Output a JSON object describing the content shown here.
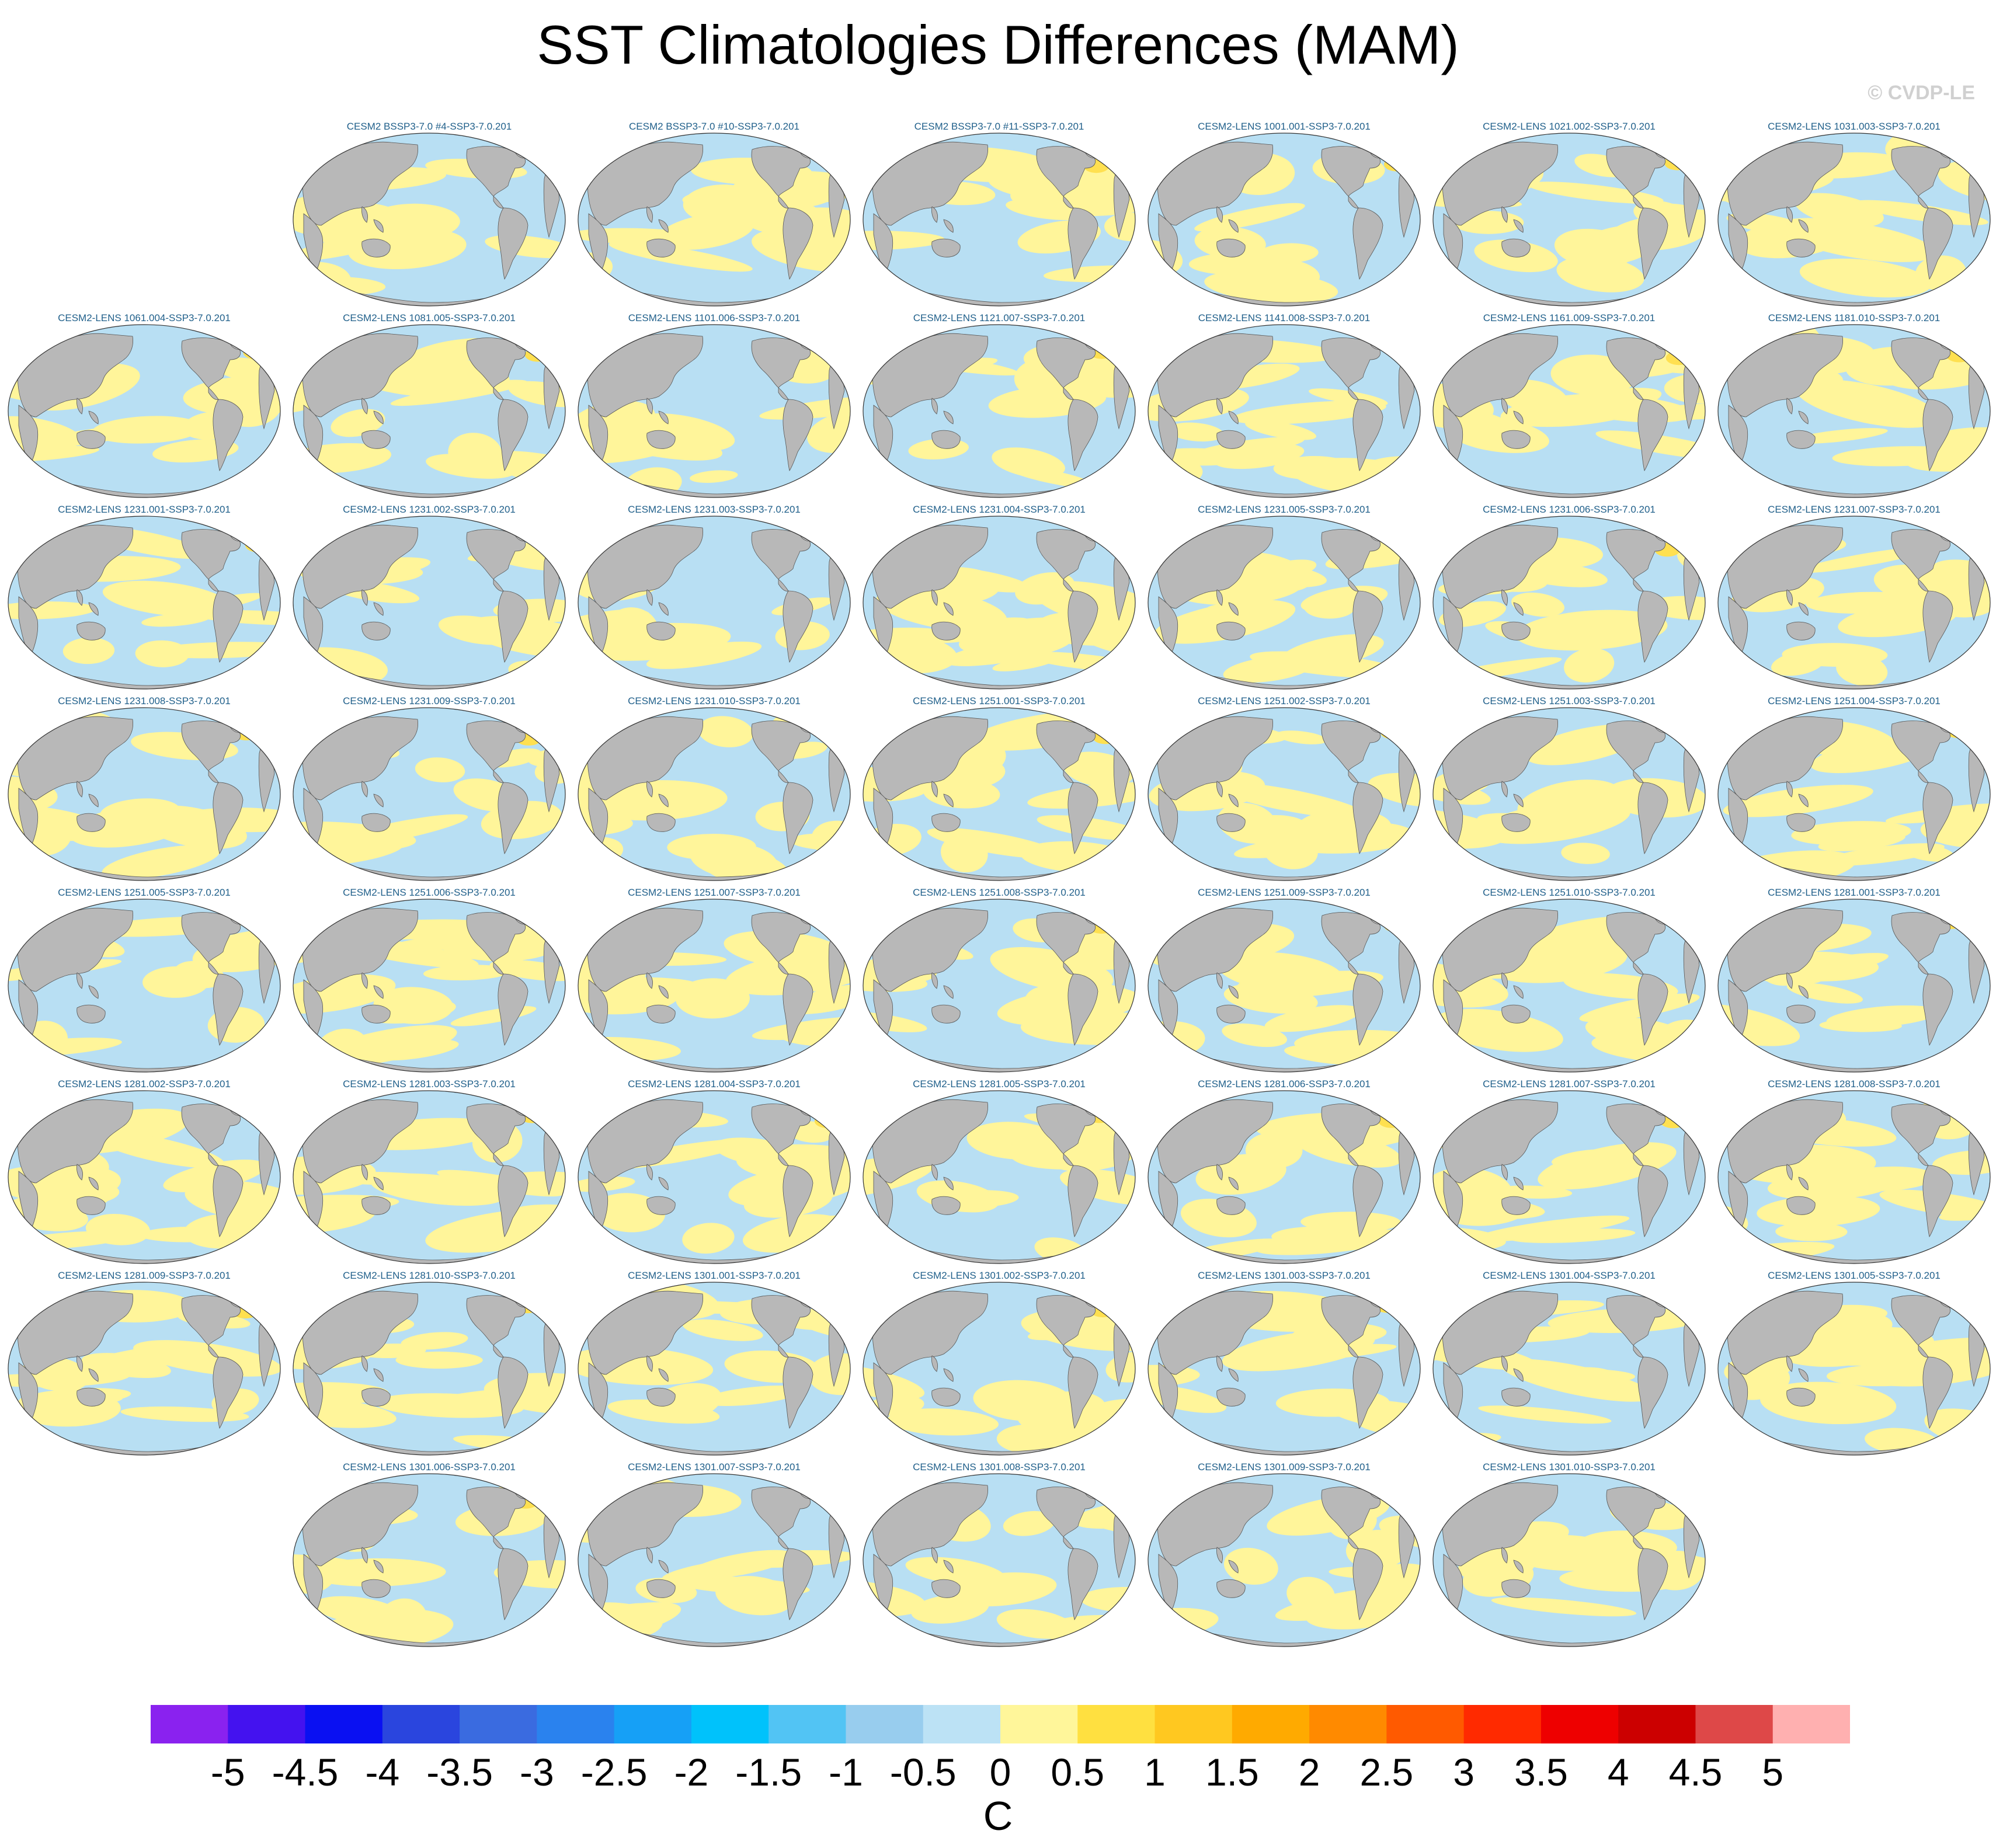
{
  "title": "SST Climatologies Differences (MAM)",
  "watermark": "© CVDP-LE",
  "colors": {
    "land": "#b8b8b8",
    "ocean_neg": "#b8dff3",
    "ocean_pos": "#fff59a",
    "ocean_pos_strong": "#ffe050",
    "label": "#1f5f8a"
  },
  "panels": {
    "row0": [
      {
        "label": "CESM2 BSSP3-7.0 #4-SSP3-7.0.201",
        "pattern": 0
      },
      {
        "label": "CESM2 BSSP3-7.0 #10-SSP3-7.0.201",
        "pattern": 1
      },
      {
        "label": "CESM2 BSSP3-7.0 #11-SSP3-7.0.201",
        "pattern": 2
      },
      {
        "label": "CESM2-LENS 1001.001-SSP3-7.0.201",
        "pattern": 3
      },
      {
        "label": "CESM2-LENS 1021.002-SSP3-7.0.201",
        "pattern": 4
      },
      {
        "label": "CESM2-LENS 1031.003-SSP3-7.0.201",
        "pattern": 5
      }
    ],
    "row1": [
      {
        "label": "CESM2-LENS 1061.004-SSP3-7.0.201",
        "pattern": 6
      },
      {
        "label": "CESM2-LENS 1081.005-SSP3-7.0.201",
        "pattern": 7
      },
      {
        "label": "CESM2-LENS 1101.006-SSP3-7.0.201",
        "pattern": 8
      },
      {
        "label": "CESM2-LENS 1121.007-SSP3-7.0.201",
        "pattern": 9
      },
      {
        "label": "CESM2-LENS 1141.008-SSP3-7.0.201",
        "pattern": 10
      },
      {
        "label": "CESM2-LENS 1161.009-SSP3-7.0.201",
        "pattern": 11
      },
      {
        "label": "CESM2-LENS 1181.010-SSP3-7.0.201",
        "pattern": 12
      }
    ],
    "row2": [
      {
        "label": "CESM2-LENS 1231.001-SSP3-7.0.201",
        "pattern": 13
      },
      {
        "label": "CESM2-LENS 1231.002-SSP3-7.0.201",
        "pattern": 14
      },
      {
        "label": "CESM2-LENS 1231.003-SSP3-7.0.201",
        "pattern": 15
      },
      {
        "label": "CESM2-LENS 1231.004-SSP3-7.0.201",
        "pattern": 16
      },
      {
        "label": "CESM2-LENS 1231.005-SSP3-7.0.201",
        "pattern": 17
      },
      {
        "label": "CESM2-LENS 1231.006-SSP3-7.0.201",
        "pattern": 18
      },
      {
        "label": "CESM2-LENS 1231.007-SSP3-7.0.201",
        "pattern": 19
      }
    ],
    "row3": [
      {
        "label": "CESM2-LENS 1231.008-SSP3-7.0.201",
        "pattern": 20
      },
      {
        "label": "CESM2-LENS 1231.009-SSP3-7.0.201",
        "pattern": 21
      },
      {
        "label": "CESM2-LENS 1231.010-SSP3-7.0.201",
        "pattern": 22
      },
      {
        "label": "CESM2-LENS 1251.001-SSP3-7.0.201",
        "pattern": 23
      },
      {
        "label": "CESM2-LENS 1251.002-SSP3-7.0.201",
        "pattern": 24
      },
      {
        "label": "CESM2-LENS 1251.003-SSP3-7.0.201",
        "pattern": 25
      },
      {
        "label": "CESM2-LENS 1251.004-SSP3-7.0.201",
        "pattern": 26
      }
    ],
    "row4": [
      {
        "label": "CESM2-LENS 1251.005-SSP3-7.0.201",
        "pattern": 27
      },
      {
        "label": "CESM2-LENS 1251.006-SSP3-7.0.201",
        "pattern": 28
      },
      {
        "label": "CESM2-LENS 1251.007-SSP3-7.0.201",
        "pattern": 29
      },
      {
        "label": "CESM2-LENS 1251.008-SSP3-7.0.201",
        "pattern": 30
      },
      {
        "label": "CESM2-LENS 1251.009-SSP3-7.0.201",
        "pattern": 31
      },
      {
        "label": "CESM2-LENS 1251.010-SSP3-7.0.201",
        "pattern": 32
      },
      {
        "label": "CESM2-LENS 1281.001-SSP3-7.0.201",
        "pattern": 33
      }
    ],
    "row5": [
      {
        "label": "CESM2-LENS 1281.002-SSP3-7.0.201",
        "pattern": 34
      },
      {
        "label": "CESM2-LENS 1281.003-SSP3-7.0.201",
        "pattern": 35
      },
      {
        "label": "CESM2-LENS 1281.004-SSP3-7.0.201",
        "pattern": 36
      },
      {
        "label": "CESM2-LENS 1281.005-SSP3-7.0.201",
        "pattern": 37
      },
      {
        "label": "CESM2-LENS 1281.006-SSP3-7.0.201",
        "pattern": 38
      },
      {
        "label": "CESM2-LENS 1281.007-SSP3-7.0.201",
        "pattern": 39
      },
      {
        "label": "CESM2-LENS 1281.008-SSP3-7.0.201",
        "pattern": 40
      }
    ],
    "row6": [
      {
        "label": "CESM2-LENS 1281.009-SSP3-7.0.201",
        "pattern": 41
      },
      {
        "label": "CESM2-LENS 1281.010-SSP3-7.0.201",
        "pattern": 42
      },
      {
        "label": "CESM2-LENS 1301.001-SSP3-7.0.201",
        "pattern": 43
      },
      {
        "label": "CESM2-LENS 1301.002-SSP3-7.0.201",
        "pattern": 44
      },
      {
        "label": "CESM2-LENS 1301.003-SSP3-7.0.201",
        "pattern": 45
      },
      {
        "label": "CESM2-LENS 1301.004-SSP3-7.0.201",
        "pattern": 46
      },
      {
        "label": "CESM2-LENS 1301.005-SSP3-7.0.201",
        "pattern": 47
      }
    ],
    "row7": [
      {
        "label": "CESM2-LENS 1301.006-SSP3-7.0.201",
        "pattern": 48
      },
      {
        "label": "CESM2-LENS 1301.007-SSP3-7.0.201",
        "pattern": 49
      },
      {
        "label": "CESM2-LENS 1301.008-SSP3-7.0.201",
        "pattern": 50
      },
      {
        "label": "CESM2-LENS 1301.009-SSP3-7.0.201",
        "pattern": 51
      },
      {
        "label": "CESM2-LENS 1301.010-SSP3-7.0.201",
        "pattern": 52
      }
    ]
  },
  "colorbar": {
    "unit": "C",
    "labels": [
      "-5",
      "-4.5",
      "-4",
      "-3.5",
      "-3",
      "-2.5",
      "-2",
      "-1.5",
      "-1",
      "-0.5",
      "0",
      "0.5",
      "1",
      "1.5",
      "2",
      "2.5",
      "3",
      "3.5",
      "4",
      "4.5",
      "5"
    ],
    "colors": [
      "#8a22ef",
      "#4412ef",
      "#0a10f2",
      "#2a45de",
      "#3a6be0",
      "#2a82ee",
      "#16a0f6",
      "#00c2fb",
      "#52c4f4",
      "#98cdee",
      "#bce2f5",
      "#fff69a",
      "#ffe040",
      "#ffc820",
      "#ffaa00",
      "#ff8a00",
      "#ff5a00",
      "#ff2a00",
      "#ee0000",
      "#cc0000",
      "#de4848",
      "#ffb0b0"
    ]
  }
}
